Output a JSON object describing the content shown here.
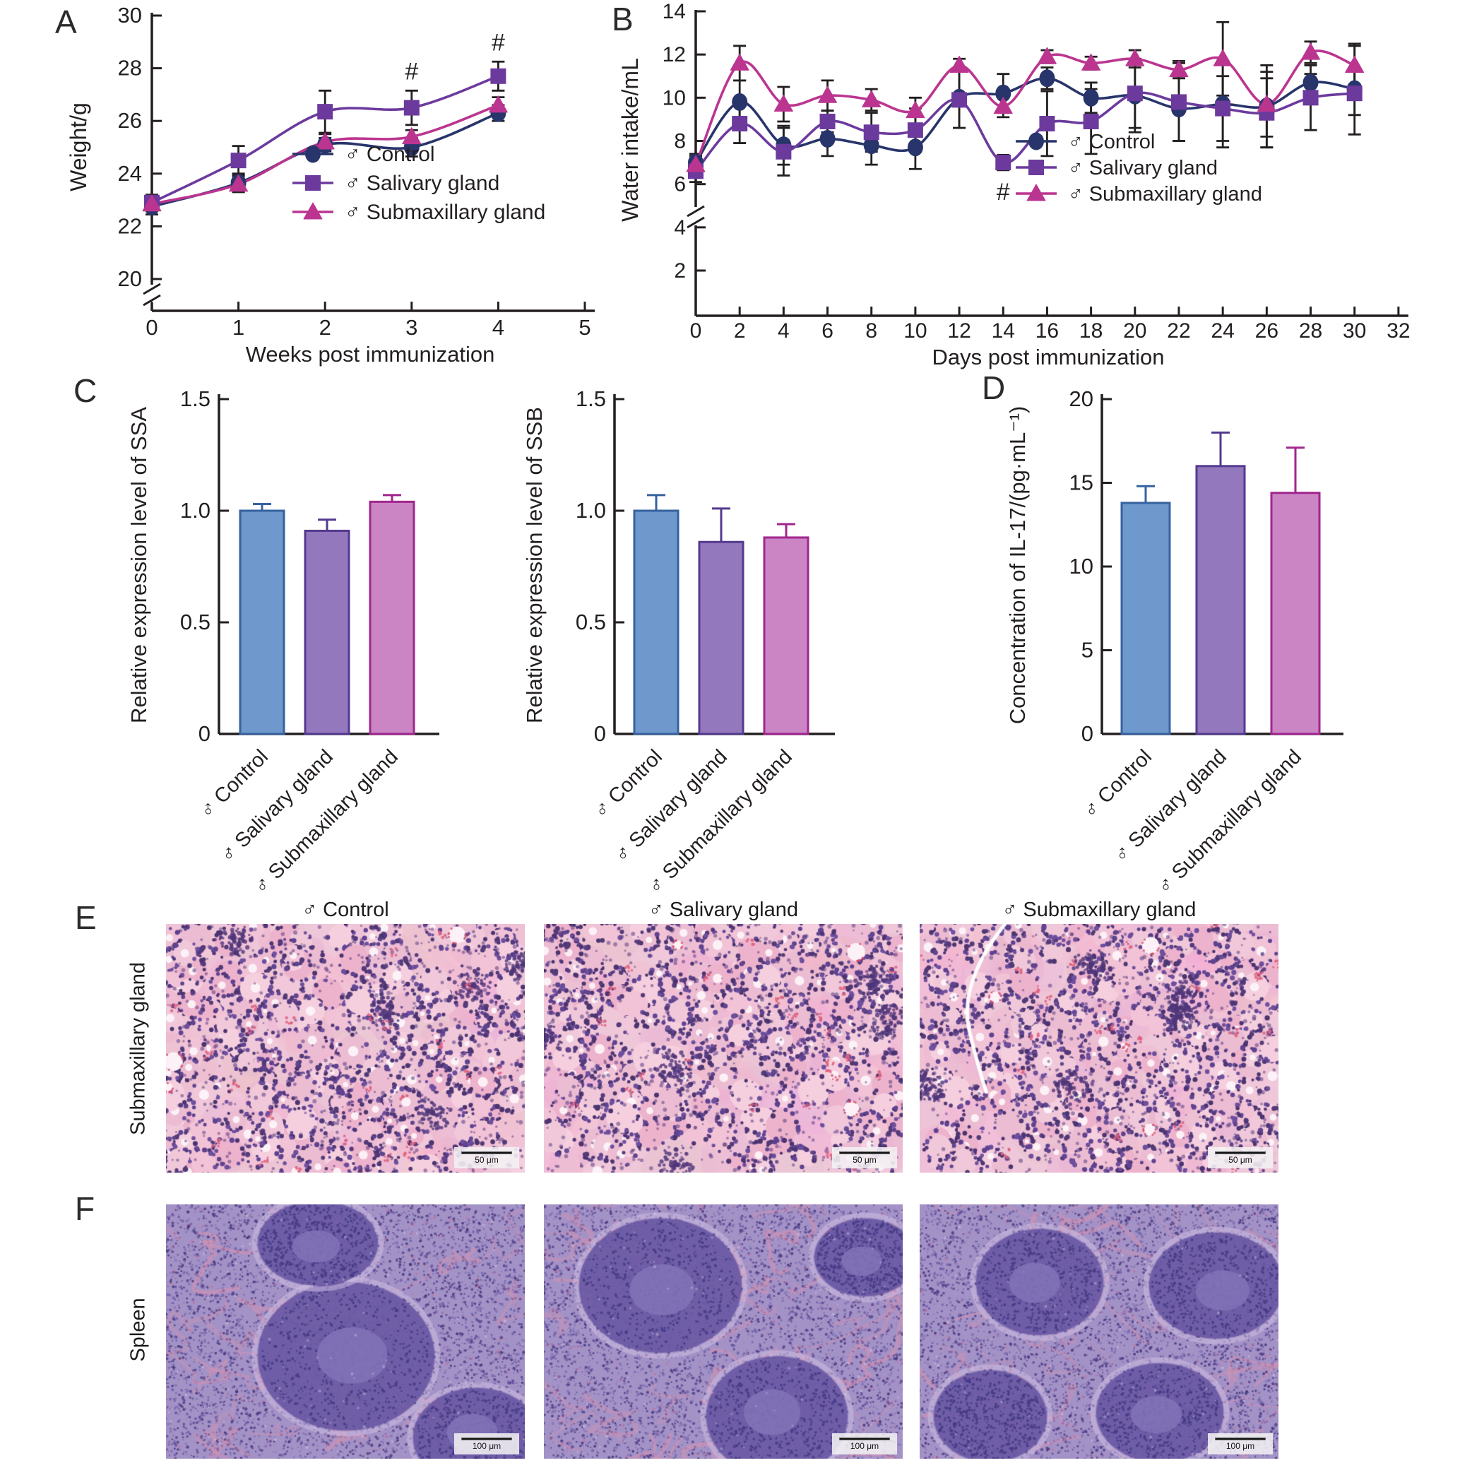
{
  "panels": [
    "A",
    "B",
    "C",
    "D",
    "E",
    "F"
  ],
  "colors": {
    "axis": "#231f20",
    "control_line": "#28356b",
    "salivary_line": "#6c3a9d",
    "submaxillary_line": "#bb3590",
    "control_bar_fill": "#6f98cc",
    "control_bar_stroke": "#36629f",
    "salivary_bar_fill": "#9478bd",
    "salivary_bar_stroke": "#533a8f",
    "submaxillary_bar_fill": "#cb85c4",
    "submaxillary_bar_stroke": "#a1268e",
    "error_bar": "#231f20"
  },
  "groups": [
    "♂ Control",
    "♂ Salivary gland",
    "♂ Submaxillary gland"
  ],
  "chart_data": [
    {
      "id": "weight",
      "type": "line",
      "xlabel": "Weeks post immunization",
      "ylabel": "Weight/g",
      "x": [
        0,
        1,
        2,
        3,
        4
      ],
      "xticks": [
        0,
        1,
        2,
        3,
        4,
        5
      ],
      "yticks": [
        20,
        22,
        24,
        26,
        28,
        30
      ],
      "ylim": [
        20,
        30
      ],
      "axis_break": "double slash below 20 on y-axis",
      "legend_position": "inside right-middle",
      "series": [
        {
          "name": "♂ Control",
          "marker": "circle",
          "values": [
            22.75,
            23.65,
            25.1,
            25.0,
            26.3
          ],
          "errors": [
            0.3,
            0.35,
            0.25,
            0.35,
            0.3
          ]
        },
        {
          "name": "♂ Salivary gland",
          "marker": "square",
          "values": [
            22.9,
            24.5,
            26.35,
            26.5,
            27.7
          ],
          "errors": [
            0.3,
            0.55,
            0.8,
            0.65,
            0.55
          ]
        },
        {
          "name": "♂ Submaxillary gland",
          "marker": "triangle",
          "values": [
            22.85,
            23.6,
            25.2,
            25.4,
            26.6
          ],
          "errors": [
            0.25,
            0.3,
            0.3,
            0.25,
            0.3
          ]
        }
      ],
      "annotations": [
        {
          "text": "#",
          "series": 1,
          "x": 3,
          "place": "above"
        },
        {
          "text": "#",
          "series": 1,
          "x": 4,
          "place": "above"
        }
      ]
    },
    {
      "id": "water",
      "type": "line",
      "xlabel": "Days post immunization",
      "ylabel": "Water intake/mL",
      "x": [
        0,
        2,
        4,
        6,
        8,
        10,
        12,
        14,
        16,
        18,
        20,
        22,
        24,
        26,
        28,
        30
      ],
      "xticks": [
        0,
        2,
        4,
        6,
        8,
        10,
        12,
        14,
        16,
        18,
        20,
        22,
        24,
        26,
        28,
        30,
        32
      ],
      "yticks": [
        2,
        4,
        6,
        8,
        10,
        12,
        14
      ],
      "ylim": [
        2,
        14
      ],
      "axis_break": "double slash between 4 and 6 on y-axis",
      "legend_position": "inside lower-middle",
      "series": [
        {
          "name": "♂ Control",
          "marker": "circle",
          "values": [
            7.0,
            9.8,
            7.8,
            8.1,
            7.8,
            7.7,
            10.0,
            10.2,
            10.9,
            10.0,
            10.1,
            9.5,
            9.7,
            9.6,
            10.7,
            10.4
          ],
          "errors": [
            0.4,
            1.0,
            0.9,
            0.8,
            0.9,
            1.0,
            1.4,
            0.9,
            0.5,
            0.7,
            1.7,
            1.5,
            2.0,
            1.9,
            0.4,
            2.1
          ]
        },
        {
          "name": "♂ Salivary gland",
          "marker": "square",
          "values": [
            6.6,
            8.8,
            7.5,
            8.9,
            8.4,
            8.5,
            9.9,
            7.0,
            8.8,
            8.9,
            10.2,
            9.8,
            9.5,
            9.3,
            10.0,
            10.2
          ],
          "errors": [
            0.5,
            0.9,
            1.1,
            0.5,
            0.9,
            1.0,
            1.3,
            0.35,
            1.5,
            1.5,
            1.6,
            1.8,
            1.5,
            1.6,
            1.5,
            1.0
          ]
        },
        {
          "name": "♂ Submaxillary gland",
          "marker": "triangle",
          "values": [
            6.9,
            11.6,
            9.7,
            10.1,
            9.9,
            9.4,
            11.5,
            9.6,
            11.9,
            11.6,
            11.8,
            11.3,
            11.8,
            9.7,
            12.1,
            11.5
          ],
          "errors": [
            0.4,
            0.8,
            0.8,
            0.7,
            0.5,
            0.6,
            0.3,
            0.5,
            0.3,
            0.3,
            0.4,
            0.4,
            1.7,
            1.5,
            0.5,
            0.9
          ]
        }
      ],
      "annotations": [
        {
          "text": "#",
          "series": 1,
          "x": 14,
          "place": "below"
        }
      ]
    },
    {
      "id": "ssa",
      "type": "bar",
      "ylabel": "Relative expression level of SSA",
      "categories": [
        "♂ Control",
        "♂ Salivary gland",
        "♂ Submaxillary gland"
      ],
      "values": [
        1.0,
        0.91,
        1.04
      ],
      "errors": [
        0.03,
        0.05,
        0.03
      ],
      "yticks": [
        0,
        0.5,
        1.0,
        1.5
      ],
      "ylim": [
        0,
        1.5
      ]
    },
    {
      "id": "ssb",
      "type": "bar",
      "ylabel": "Relative expression level of SSB",
      "categories": [
        "♂ Control",
        "♂ Salivary gland",
        "♂ Submaxillary gland"
      ],
      "values": [
        1.0,
        0.86,
        0.88
      ],
      "errors": [
        0.07,
        0.15,
        0.06
      ],
      "yticks": [
        0,
        0.5,
        1.0,
        1.5
      ],
      "ylim": [
        0,
        1.5
      ]
    },
    {
      "id": "il17",
      "type": "bar",
      "ylabel": "Concentration of IL-17/(pg·mL⁻¹)",
      "categories": [
        "♂ Control",
        "♂ Salivary gland",
        "♂ Submaxillary gland"
      ],
      "values": [
        13.8,
        16.0,
        14.4
      ],
      "errors": [
        1.0,
        2.0,
        2.7
      ],
      "yticks": [
        0,
        5,
        10,
        15,
        20
      ],
      "ylim": [
        0,
        20
      ]
    }
  ],
  "histology": {
    "column_titles": [
      "♂ Control",
      "♂ Salivary gland",
      "♂ Submaxillary gland"
    ],
    "rows": [
      {
        "label": "Submaxillary gland",
        "scale_bar": "50 μm"
      },
      {
        "label": "Spleen",
        "scale_bar": "100 μm"
      }
    ]
  }
}
